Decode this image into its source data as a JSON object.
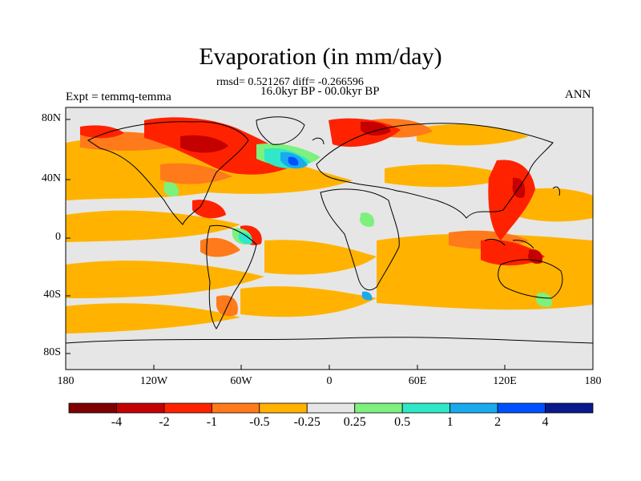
{
  "title": "Evaporation (in mm/day)",
  "stats": "rmsd= 0.521267 diff= -0.266596",
  "period": "16.0kyr BP - 00.0kyr BP",
  "expt": "Expt = temmq-temma",
  "season": "ANN",
  "y_ticks": [
    "80N",
    "40N",
    "0",
    "40S",
    "80S"
  ],
  "x_ticks": [
    "180",
    "120W",
    "60W",
    "0",
    "60E",
    "120E",
    "180"
  ],
  "colorbar": {
    "labels": [
      "-4",
      "-2",
      "-1",
      "-0.5",
      "-0.25",
      "0.25",
      "0.5",
      "1",
      "2",
      "4"
    ],
    "colors": [
      "#7f0000",
      "#c40000",
      "#ff2200",
      "#ff7a1a",
      "#ffb300",
      "#e6e6e6",
      "#7df07d",
      "#30e8c8",
      "#1aaaf0",
      "#0050ff",
      "#0a1a8c"
    ]
  },
  "colors": {
    "neutral": "#e6e6e6",
    "weak_neg": "#ffb300",
    "mod_neg": "#ff7a1a",
    "strong_neg": "#ff2200",
    "very_strong_neg": "#c40000",
    "weak_pos": "#7df07d",
    "mod_pos": "#30e8c8",
    "strong_pos": "#1aaaf0",
    "very_strong_pos": "#0050ff"
  }
}
